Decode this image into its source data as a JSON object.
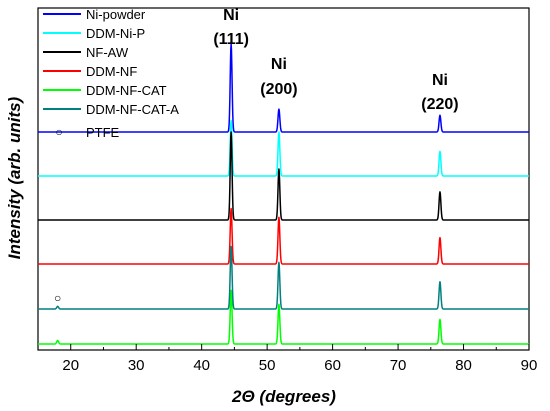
{
  "chart_data": {
    "type": "line",
    "title": "",
    "xlabel": "2Θ (degrees)",
    "ylabel": "Intensity (arb. units)",
    "xlim": [
      15,
      90
    ],
    "xticks": [
      20,
      30,
      40,
      50,
      60,
      70,
      80,
      90
    ],
    "y_ticks_visible": false,
    "grid": false,
    "legend_position": "top-left",
    "series": [
      {
        "name": "Ni-powder",
        "color": "#0000ff",
        "baseline": 6,
        "peaks": [
          {
            "x": 44.5,
            "h": 1.0
          },
          {
            "x": 51.8,
            "h": 0.26
          },
          {
            "x": 76.4,
            "h": 0.19
          }
        ]
      },
      {
        "name": "DDM-Ni-P",
        "color": "#00ffff",
        "baseline": 5,
        "peaks": [
          {
            "x": 44.5,
            "h": 0.63
          },
          {
            "x": 51.8,
            "h": 0.5
          },
          {
            "x": 76.4,
            "h": 0.28
          }
        ]
      },
      {
        "name": "NF-AW",
        "color": "#000000",
        "baseline": 4,
        "peaks": [
          {
            "x": 44.5,
            "h": 1.0
          },
          {
            "x": 51.8,
            "h": 0.58
          },
          {
            "x": 76.4,
            "h": 0.32
          }
        ]
      },
      {
        "name": "DDM-NF",
        "color": "#ff0000",
        "baseline": 3,
        "peaks": [
          {
            "x": 44.5,
            "h": 0.63
          },
          {
            "x": 51.8,
            "h": 0.53
          },
          {
            "x": 76.4,
            "h": 0.3
          }
        ]
      },
      {
        "name": "DDM-NF-CAT",
        "color": "#00ff00",
        "baseline": 1,
        "peaks": [
          {
            "x": 18.0,
            "h": 0.04
          },
          {
            "x": 44.5,
            "h": 0.61
          },
          {
            "x": 51.8,
            "h": 0.45
          },
          {
            "x": 76.4,
            "h": 0.28
          }
        ]
      },
      {
        "name": "DDM-NF-CAT-A",
        "color": "#008080",
        "baseline": 2,
        "peaks": [
          {
            "x": 18.0,
            "h": 0.03
          },
          {
            "x": 44.5,
            "h": 0.71
          },
          {
            "x": 51.8,
            "h": 0.53
          },
          {
            "x": 76.4,
            "h": 0.31
          }
        ]
      }
    ],
    "legend_extra": {
      "symbol": "○",
      "label": "PTFE"
    },
    "annotations": [
      {
        "line1": "Ni",
        "line2": "(111)",
        "x": 44.5
      },
      {
        "line1": "Ni",
        "line2": "(200)",
        "x": 51.8
      },
      {
        "line1": "Ni",
        "line2": "(220)",
        "x": 76.4
      }
    ],
    "ptfe_marker": {
      "symbol": "○",
      "x": 18.0
    }
  }
}
